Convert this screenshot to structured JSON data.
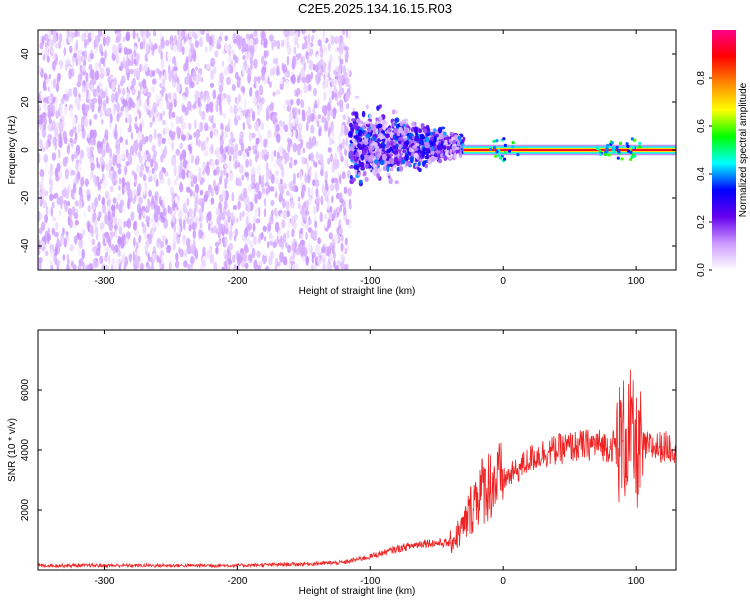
{
  "chart_data": [
    {
      "type": "heatmap",
      "title": "C2E5.2025.134.16.15.R03",
      "xlabel": "Height of straight line (km)",
      "ylabel": "Frequency (Hz)",
      "xlim": [
        -350,
        130
      ],
      "ylim": [
        -50,
        50
      ],
      "xticks": [
        -300,
        -200,
        -100,
        0,
        100
      ],
      "yticks": [
        -40,
        -20,
        0,
        20,
        40
      ],
      "colorbar": {
        "label": "Normalized spectral amplitude",
        "range": [
          0,
          1
        ],
        "ticks": [
          0.0,
          0.2,
          0.4,
          0.6,
          0.8
        ],
        "tick_labels": [
          "0.0",
          "0.2",
          "0.4",
          "0.6",
          "0.8"
        ],
        "colormap": [
          "#ffffff",
          "#cc99ff",
          "#6600ee",
          "#0000ff",
          "#00ffff",
          "#00ff00",
          "#ffff00",
          "#ff8800",
          "#ff0000",
          "#ff0088"
        ]
      },
      "regions": [
        {
          "x_range": [
            -350,
            -115
          ],
          "f_range": [
            -50,
            50
          ],
          "amplitude_range": [
            0.0,
            0.12
          ],
          "description": "sparse noise"
        },
        {
          "x_range": [
            -115,
            -30
          ],
          "f_range": [
            -12,
            15
          ],
          "amplitude_range": [
            0.05,
            0.35
          ]
        },
        {
          "x_range": [
            -30,
            130
          ],
          "f_range": [
            -1,
            1
          ],
          "amplitude_range": [
            0.8,
            1.0
          ]
        }
      ]
    },
    {
      "type": "line",
      "xlabel": "Height of straight line (km)",
      "ylabel": "SNR (10 * v/v)",
      "xlim": [
        -350,
        130
      ],
      "ylim": [
        0,
        8000
      ],
      "xticks": [
        -300,
        -200,
        -100,
        0,
        100
      ],
      "yticks": [
        2000,
        4000,
        6000
      ],
      "color": "#ee2222",
      "series": [
        {
          "x": [
            -350,
            -300,
            -250,
            -200,
            -150,
            -120,
            -100,
            -80,
            -60,
            -40,
            -30,
            -20,
            -10,
            0,
            10,
            20,
            30,
            50,
            70,
            80,
            90,
            95,
            100,
            105,
            110,
            120,
            130
          ],
          "values": [
            150,
            150,
            150,
            150,
            200,
            250,
            450,
            700,
            900,
            900,
            1400,
            2500,
            2900,
            3000,
            3300,
            3700,
            3900,
            4100,
            4200,
            4100,
            4300,
            4600,
            3900,
            4100,
            4100,
            4100,
            4100
          ]
        }
      ]
    }
  ]
}
